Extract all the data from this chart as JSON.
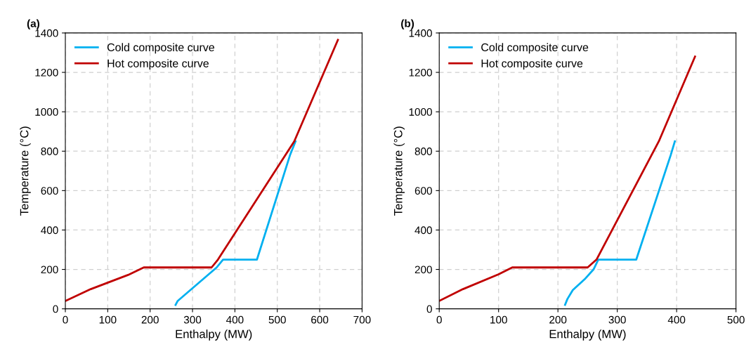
{
  "chart_data": [
    {
      "type": "line",
      "title": "(a)",
      "xlabel": "Enthalpy (MW)",
      "ylabel": "Temperature (°C)",
      "xlim": [
        0,
        700
      ],
      "xticks": [
        0,
        100,
        200,
        300,
        400,
        500,
        600,
        700
      ],
      "ylim": [
        0,
        1400
      ],
      "yticks": [
        0,
        200,
        400,
        600,
        800,
        1000,
        1200,
        1400
      ],
      "grid": true,
      "legend": "top left",
      "series": [
        {
          "name": "Cold composite curve",
          "color": "#00b0f0",
          "x": [
            260,
            265,
            357,
            372,
            452,
            530,
            543
          ],
          "values": [
            20,
            40,
            210,
            250,
            250,
            780,
            850
          ]
        },
        {
          "name": "Hot composite curve",
          "color": "#c00000",
          "x": [
            0,
            60,
            148,
            185,
            345,
            360,
            540,
            643
          ],
          "values": [
            40,
            100,
            172,
            210,
            210,
            250,
            850,
            1365
          ]
        }
      ]
    },
    {
      "type": "line",
      "title": "(b)",
      "xlabel": "Enthalpy (MW)",
      "ylabel": "Temperature (°C)",
      "xlim": [
        0,
        500
      ],
      "xticks": [
        0,
        100,
        200,
        300,
        400,
        500
      ],
      "ylim": [
        0,
        1400
      ],
      "yticks": [
        0,
        200,
        400,
        600,
        800,
        1000,
        1200,
        1400
      ],
      "grid": true,
      "legend": "top left",
      "series": [
        {
          "name": "Cold composite curve",
          "color": "#00b0f0",
          "x": [
            212,
            216,
            225,
            245,
            260,
            268,
            332,
            390,
            397
          ],
          "values": [
            20,
            50,
            95,
            150,
            200,
            250,
            250,
            780,
            850
          ]
        },
        {
          "name": "Hot composite curve",
          "color": "#c00000",
          "x": [
            0,
            40,
            100,
            123,
            250,
            265,
            370,
            431
          ],
          "values": [
            40,
            100,
            175,
            210,
            210,
            250,
            850,
            1280
          ]
        }
      ]
    }
  ]
}
